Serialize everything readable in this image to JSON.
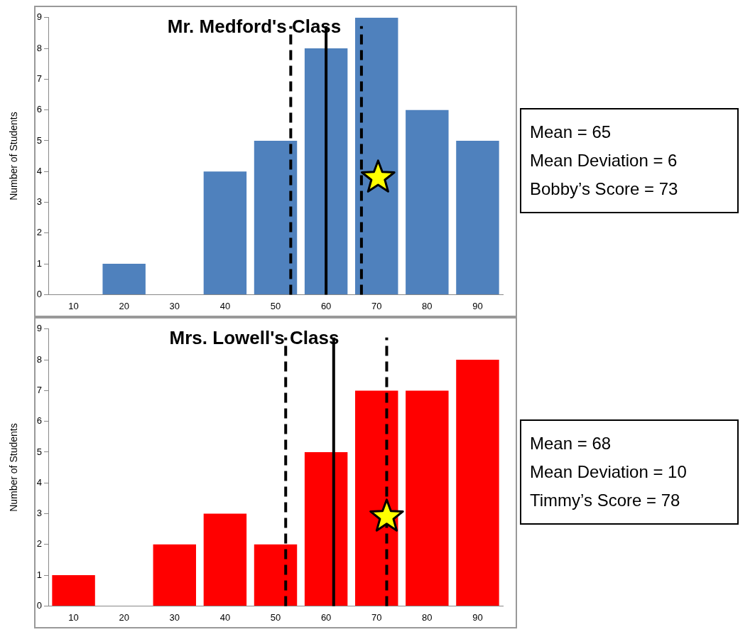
{
  "chart_data": [
    {
      "type": "bar",
      "title": "Mr. Medford's Class",
      "ylabel": "Number of Students",
      "x": [
        10,
        20,
        30,
        40,
        50,
        60,
        70,
        80,
        90
      ],
      "xlim": [
        5,
        95
      ],
      "xticks": [
        10,
        20,
        30,
        40,
        50,
        60,
        70,
        80,
        90
      ],
      "ylim": [
        0,
        9
      ],
      "yticks": [
        0,
        1,
        2,
        3,
        4,
        5,
        6,
        7,
        8,
        9
      ],
      "grid": false,
      "legend": false,
      "series": [
        {
          "type": "bar",
          "color": "#4f81bd",
          "values": [
            0,
            1,
            0,
            4,
            5,
            8,
            9,
            6,
            5
          ]
        },
        {
          "type": "scatter",
          "color": "#ffff00",
          "x": [
            70.3
          ],
          "values": [
            3.8
          ],
          "marker": "star"
        }
      ],
      "ref_lines": [
        {
          "axis": "x",
          "value": 53,
          "color": "#000000",
          "line_style": "dashed"
        },
        {
          "axis": "x",
          "value": 60,
          "color": "#000000",
          "line_style": "solid"
        },
        {
          "axis": "x",
          "value": 67,
          "color": "#000000",
          "line_style": "dashed"
        }
      ]
    },
    {
      "type": "other",
      "annotations": [
        "Mean = 65",
        "Mean Deviation = 6",
        "Bobby’s Score = 73"
      ]
    },
    {
      "type": "bar",
      "title": "Mrs. Lowell's Class",
      "ylabel": "Number of Students",
      "x": [
        10,
        20,
        30,
        40,
        50,
        60,
        70,
        80,
        90
      ],
      "xlim": [
        5,
        95
      ],
      "xticks": [
        10,
        20,
        30,
        40,
        50,
        60,
        70,
        80,
        90
      ],
      "ylim": [
        0,
        9
      ],
      "yticks": [
        0,
        1,
        2,
        3,
        4,
        5,
        6,
        7,
        8,
        9
      ],
      "grid": false,
      "legend": false,
      "series": [
        {
          "type": "bar",
          "color": "#ff0000",
          "values": [
            1,
            0,
            2,
            3,
            2,
            5,
            7,
            7,
            8
          ]
        },
        {
          "type": "scatter",
          "color": "#ffff00",
          "x": [
            72
          ],
          "values": [
            2.9
          ],
          "marker": "star"
        }
      ],
      "ref_lines": [
        {
          "axis": "x",
          "value": 52,
          "color": "#000000",
          "line_style": "dashed"
        },
        {
          "axis": "x",
          "value": 61.5,
          "color": "#000000",
          "line_style": "solid"
        },
        {
          "axis": "x",
          "value": 72,
          "color": "#000000",
          "line_style": "dashed"
        }
      ]
    },
    {
      "type": "other",
      "annotations": [
        "Mean = 68",
        "Mean Deviation = 10",
        "Timmy’s Score = 78"
      ]
    }
  ]
}
